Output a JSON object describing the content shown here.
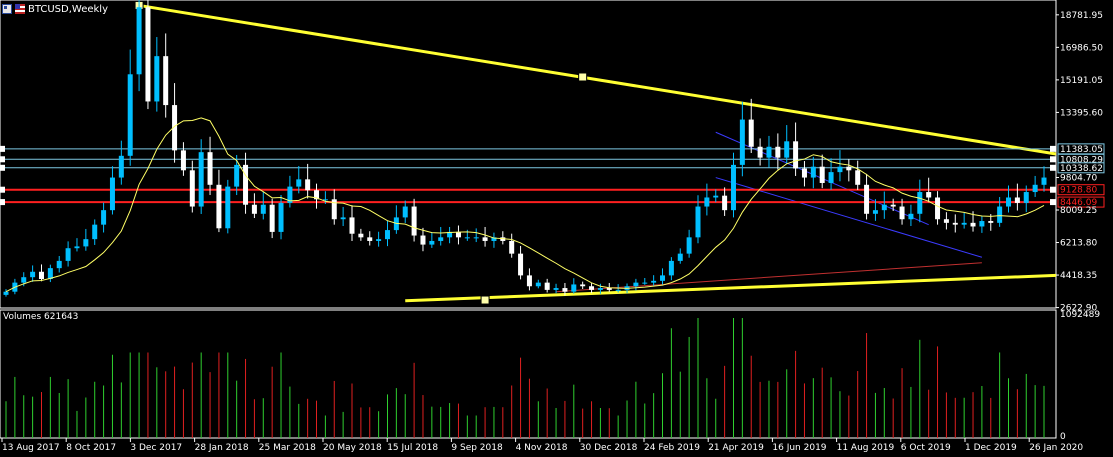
{
  "window": {
    "symbol_title": "BTCUSD,Weekly",
    "volume_label": "Volumes 621643"
  },
  "colors": {
    "background": "#000000",
    "bull": "#00bfff",
    "bear": "#ffffff",
    "moving_average": "#ffff66",
    "trendline": "#ffff33",
    "price_line": "#7ec8e3",
    "red_line": "#ff2020",
    "volume_up": "#2fd02f",
    "volume_down": "#e02020",
    "channel": "#3b3bff",
    "lower_ma": "#c03030"
  },
  "chart_data": {
    "type": "candlestick",
    "title": "BTCUSD,Weekly",
    "y_axis_ticks": [
      "18781.95",
      "16986.50",
      "15191.05",
      "13395.60",
      "11383.05",
      "10808.29",
      "10338.62",
      "9804.70",
      "9128.80",
      "8446.09",
      "8009.25",
      "6213.80",
      "4418.35",
      "2622.90"
    ],
    "y_axis_range": [
      2600,
      19600
    ],
    "price_labels": [
      {
        "text": "11383.05",
        "value": 11383.05,
        "color": "#7ec8e3"
      },
      {
        "text": "10808.29",
        "value": 10808.29,
        "color": "#7ec8e3"
      },
      {
        "text": "10338.62",
        "value": 10338.62,
        "color": "#7ec8e3"
      },
      {
        "text": "9128.80",
        "value": 9128.8,
        "color": "#ff2020"
      },
      {
        "text": "8446.09",
        "value": 8446.09,
        "color": "#ff2020"
      }
    ],
    "x_axis_ticks": [
      "13 Aug 2017",
      "8 Oct 2017",
      "3 Dec 2017",
      "28 Jan 2018",
      "25 Mar 2018",
      "20 May 2018",
      "15 Jul 2018",
      "9 Sep 2018",
      "4 Nov 2018",
      "30 Dec 2018",
      "24 Feb 2019",
      "21 Apr 2019",
      "16 Jun 2019",
      "11 Aug 2019",
      "6 Oct 2019",
      "1 Dec 2019",
      "26 Jan 2020"
    ],
    "close_series": [
      3500,
      4000,
      4300,
      4600,
      4200,
      4800,
      5200,
      5900,
      6000,
      6400,
      7200,
      8000,
      9800,
      11000,
      15500,
      19200,
      14000,
      16500,
      13800,
      11300,
      10200,
      8200,
      11200,
      9400,
      7000,
      9300,
      10500,
      8300,
      7800,
      8300,
      6800,
      8400,
      9300,
      9700,
      9100,
      8600,
      8600,
      7500,
      7600,
      6700,
      6500,
      6300,
      6400,
      6900,
      7600,
      8200,
      6600,
      6100,
      6300,
      6500,
      6800,
      6500,
      6500,
      6500,
      6300,
      6500,
      6300,
      5600,
      4400,
      3800,
      4000,
      3600,
      3700,
      3500,
      3900,
      3800,
      3600,
      3700,
      3600,
      3600,
      3800,
      4000,
      4000,
      4100,
      4400,
      5200,
      5600,
      6500,
      8200,
      8700,
      8800,
      8000,
      10500,
      13000,
      11500,
      10900,
      11500,
      10900,
      11800,
      10300,
      9800,
      10400,
      9500,
      10100,
      10400,
      10200,
      9400,
      7800,
      8000,
      8300,
      8200,
      7500,
      7800,
      9000,
      8700,
      7500,
      7300,
      7200,
      7300,
      7100,
      7400,
      7300,
      8200,
      8700,
      8400,
      9000,
      9400,
      9800
    ],
    "moving_average_note": "yellow moving average overlay",
    "volume_axis_ticks": [
      "1092489",
      "0"
    ],
    "volume_range": [
      0,
      1092489
    ]
  }
}
